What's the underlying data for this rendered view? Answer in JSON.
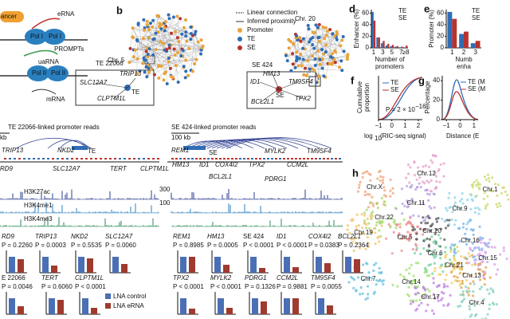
{
  "a": {
    "texts": [
      "ancer",
      "eRNA",
      "Pol I",
      "Pol I",
      "PROMPTs",
      "uaRNA",
      "Pol II",
      "Pol II",
      "mRNA"
    ]
  },
  "b": {
    "label": "b",
    "chr5": "Chr. 5",
    "chr20": "Chr. 20",
    "legend": [
      "Linear connection",
      "Inferred proximity",
      "Promoter",
      "TE",
      "SE"
    ],
    "te_box": {
      "title": "TE 22066",
      "genes": [
        "SLC12A7",
        "TRIP13",
        "CLPTM1L"
      ],
      "center": "TE"
    },
    "se_box": {
      "title": "SE 424",
      "genes": [
        "ID1",
        "HM13",
        "TM9SF4",
        "BCL2L1",
        "TPX2"
      ],
      "center": "SE"
    }
  },
  "c": {
    "te_title": "TE 22066-linked promoter reads",
    "se_title": "SE 424-linked promoter reads",
    "te_scale": "kb",
    "se_scale": "100 kb",
    "te_genes": [
      "TRIP13",
      "NKD2",
      "TE",
      "RD9",
      "SLC12A7",
      "TERT",
      "CLPTM1L"
    ],
    "se_genes": [
      "REM1",
      "SE",
      "MYLK2",
      "TM9SF4",
      "HM13",
      "ID1",
      "COX4I2",
      "TPX2",
      "CCM2L",
      "BCL2L1",
      "PDRG1"
    ],
    "tracks": [
      "H3K27ac",
      "H3K4me1",
      "H3K4me3"
    ],
    "se_scales": [
      "300",
      "100"
    ]
  },
  "d": {
    "label": "d",
    "ylabel": "Enhancer (%)",
    "xlabel": [
      "Number of",
      "promoters"
    ],
    "categories": [
      "1",
      null,
      "3",
      null,
      "5",
      null,
      "7",
      "≥8"
    ],
    "series": [
      {
        "name": "TE",
        "color": "#2f6db5",
        "values": [
          62,
          18,
          8,
          4,
          3,
          2,
          1,
          1
        ]
      },
      {
        "name": "SE",
        "color": "#b8322e",
        "values": [
          47,
          18,
          12,
          7,
          5,
          3,
          2,
          4
        ]
      }
    ],
    "ylim": [
      0,
      66
    ],
    "yticks": [
      0,
      20,
      40,
      60
    ]
  },
  "e": {
    "label": "e",
    "ylabel": "Promoter (%)",
    "xlabel": [
      "Numb",
      "enha"
    ],
    "categories": [
      "1",
      "2",
      "3"
    ],
    "series": [
      {
        "name": "TE",
        "color": "#2f6db5",
        "values": [
          62,
          24,
          8
        ]
      },
      {
        "name": "SE",
        "color": "#b8322e",
        "values": [
          50,
          28,
          12
        ]
      }
    ],
    "ylim": [
      0,
      66
    ],
    "yticks": [
      0,
      20,
      40,
      60
    ]
  },
  "f": {
    "label": "f",
    "ylabel": [
      "Cumulative",
      "proportion"
    ],
    "legend": [
      "TE",
      "SE"
    ],
    "pvalue": "P = 2 × 10",
    "pexp": "−16",
    "xlabel": [
      "log",
      "10",
      "(RIC-seq signal)"
    ],
    "xlim": [
      -1,
      2.3
    ],
    "xticks": [
      {
        "value": -1,
        "label": "−1"
      },
      0,
      1,
      2
    ]
  },
  "g": {
    "label": "g",
    "ylabel": "Percentage",
    "legend": [
      "TE (M",
      "SE (M"
    ],
    "xlabel": "Distance (E",
    "ylim": [
      0,
      45
    ],
    "yticks": [
      0,
      20,
      40
    ],
    "xlim": [
      -1.3,
      1.3
    ],
    "xticks": [
      {
        "value": -1,
        "label": "−1"
      },
      0,
      1
    ]
  },
  "h": {
    "label": "h",
    "chromosomes": [
      "Chr.12",
      "Chr.1",
      "Chr.X",
      "Chr.11",
      "Chr.9",
      "Chr.22",
      "Chr.19",
      "Chr.5",
      "Chr.20",
      "Chr.16",
      "Chr.6",
      "Chr.15",
      "Chr.21",
      "Chr.7",
      "Chr.14",
      "Chr.13",
      "Chr.17",
      "Chr.4"
    ]
  },
  "bars": {
    "ylim": [
      0,
      1.4
    ],
    "legend": [
      "LNA control",
      "LNA eRNA"
    ],
    "colors": [
      "#4a6fb5",
      "#9e3b2e"
    ],
    "row1": [
      {
        "gene": "RD9",
        "p": "P = 0.2260",
        "values": [
          1,
          0.85
        ]
      },
      {
        "gene": "TRIP13",
        "p": "P = 0.0003",
        "values": [
          1,
          0.45
        ]
      },
      {
        "gene": "NKD2",
        "p": "P = 0.5535",
        "values": [
          1,
          0.9
        ]
      },
      {
        "gene": "SLC12A7",
        "p": "P = 0.0060",
        "values": [
          1,
          0.55
        ]
      },
      {
        "gene": "REM1",
        "p": "P = 0.8985",
        "values": [
          1,
          1.0
        ]
      },
      {
        "gene": "HM13",
        "p": "P = 0.0005",
        "values": [
          1,
          0.5
        ]
      },
      {
        "gene": "SE 424",
        "p": "P < 0.0001",
        "values": [
          1,
          0.3
        ]
      },
      {
        "gene": "ID1",
        "p": "P < 0.0001",
        "values": [
          1,
          0.35
        ]
      },
      {
        "gene": "COX4I2",
        "p": "P = 0.0383",
        "values": [
          1,
          0.6
        ]
      },
      {
        "gene": "BCL2L1",
        "p": "P = 0.2364",
        "values": [
          1,
          0.85
        ]
      }
    ],
    "row2": [
      {
        "gene": "E 22066",
        "p": "P = 0.0046",
        "values": [
          1,
          0.5
        ]
      },
      {
        "gene": "TERT",
        "p": "P = 0.6060",
        "values": [
          1,
          0.9
        ]
      },
      {
        "gene": "CLPTM1L",
        "p": "P < 0.0001",
        "values": [
          1,
          0.4
        ]
      },
      {
        "gene": "TPX2",
        "p": "P < 0.0001",
        "values": [
          1,
          0.35
        ]
      },
      {
        "gene": "MYLK2",
        "p": "P < 0.0001",
        "values": [
          1,
          0.4
        ]
      },
      {
        "gene": "PDRG1",
        "p": "P = 0.1326",
        "values": [
          1,
          0.8
        ]
      },
      {
        "gene": "CCM2L",
        "p": "P = 0.9881",
        "values": [
          1,
          1.0
        ]
      },
      {
        "gene": "TM9SF4",
        "p": "P = 0.0055",
        "values": [
          1,
          0.55
        ]
      }
    ]
  }
}
